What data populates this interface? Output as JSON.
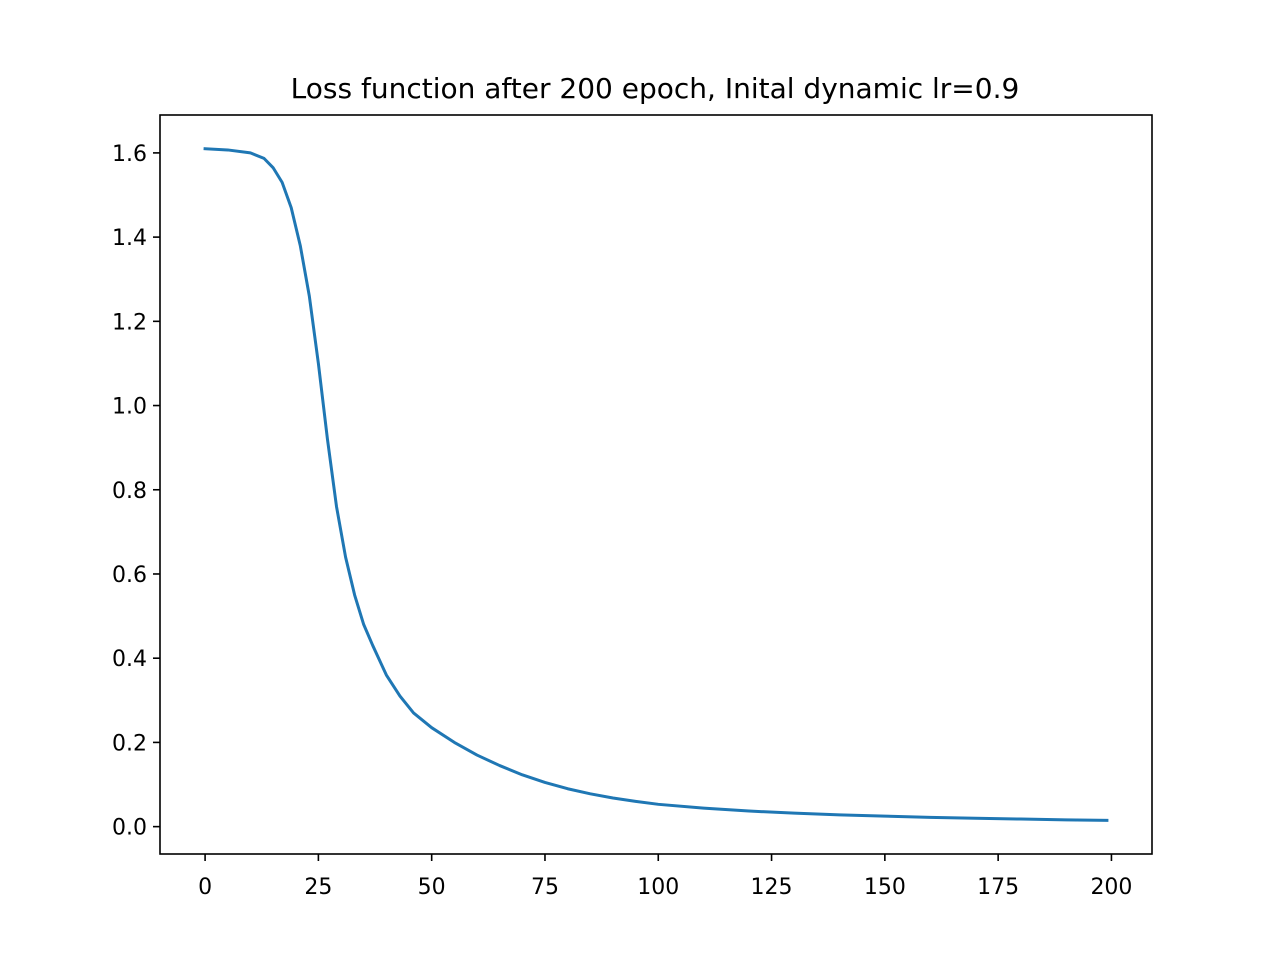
{
  "chart_data": {
    "type": "line",
    "title": "Loss function after 200 epoch, Inital dynamic lr=0.9",
    "xlabel": "",
    "ylabel": "",
    "xlim": [
      -9.95,
      208.95
    ],
    "ylim": [
      -0.065,
      1.69
    ],
    "xticks": [
      0,
      25,
      50,
      75,
      100,
      125,
      150,
      175,
      200
    ],
    "xtick_labels": [
      "0",
      "25",
      "50",
      "75",
      "100",
      "125",
      "150",
      "175",
      "200"
    ],
    "yticks": [
      0.0,
      0.2,
      0.4,
      0.6,
      0.8,
      1.0,
      1.2,
      1.4,
      1.6
    ],
    "ytick_labels": [
      "0.0",
      "0.2",
      "0.4",
      "0.6",
      "0.8",
      "1.0",
      "1.2",
      "1.4",
      "1.6"
    ],
    "grid": false,
    "line_color": "#1f77b4",
    "series": [
      {
        "x": [
          0,
          5,
          10,
          13,
          15,
          17,
          19,
          21,
          23,
          25,
          27,
          29,
          31,
          33,
          35,
          37,
          40,
          43,
          46,
          50,
          55,
          60,
          65,
          70,
          75,
          80,
          85,
          90,
          95,
          100,
          110,
          120,
          130,
          140,
          150,
          160,
          170,
          180,
          190,
          199
        ],
        "y": [
          1.61,
          1.607,
          1.6,
          1.587,
          1.565,
          1.53,
          1.47,
          1.38,
          1.26,
          1.1,
          0.92,
          0.76,
          0.64,
          0.55,
          0.48,
          0.43,
          0.36,
          0.31,
          0.27,
          0.235,
          0.2,
          0.17,
          0.145,
          0.123,
          0.105,
          0.09,
          0.078,
          0.068,
          0.06,
          0.053,
          0.044,
          0.037,
          0.032,
          0.028,
          0.025,
          0.022,
          0.02,
          0.018,
          0.016,
          0.015
        ]
      }
    ]
  }
}
